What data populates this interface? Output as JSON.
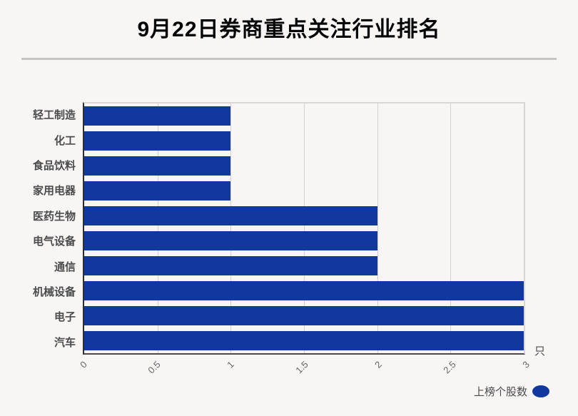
{
  "page": {
    "background": "#f8f5f5"
  },
  "header": {
    "title": "9月22日券商重点关注行业排名"
  },
  "chart_data": {
    "type": "bar",
    "orientation": "horizontal",
    "title": "9月22日券商重点关注行业排名",
    "categories": [
      "轻工制造",
      "化工",
      "食品饮料",
      "家用电器",
      "医药生物",
      "电气设备",
      "通信",
      "机械设备",
      "电子",
      "汽车"
    ],
    "values": [
      1,
      1,
      1,
      1,
      2,
      2,
      2,
      3,
      3,
      3
    ],
    "series_name": "上榜个股数",
    "x_ticks": [
      0,
      0.5,
      1,
      1.5,
      2,
      2.5,
      3
    ],
    "x_tick_labels": [
      "0",
      "0.5",
      "1",
      "1.5",
      "2",
      "2.5",
      "3"
    ],
    "xlim": [
      0,
      3
    ],
    "x_unit": "只",
    "grid": "vertical-only",
    "legend_position": "bottom-right",
    "bar_color": "#11389e"
  },
  "axis": {
    "unit_label": "只"
  },
  "legend": {
    "label": "上榜个股数"
  },
  "colors": {
    "bar": "#11389e",
    "gridline": "#d4d0d3",
    "divider": "#c6c3c4",
    "axis_dark": "#3a3a3a",
    "plot_border_light": "#dbd8d9"
  }
}
